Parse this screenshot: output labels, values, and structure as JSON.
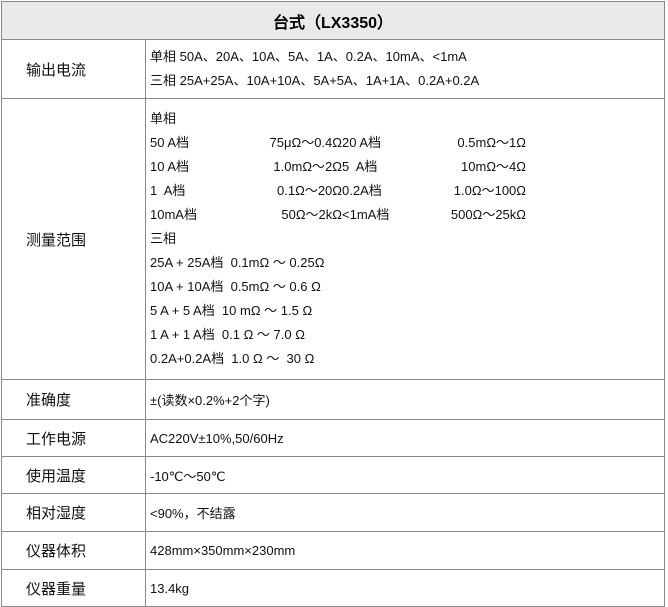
{
  "title": "台式（LX3350）",
  "rows": {
    "range": {
      "label": "输出电流",
      "lines": [
        "单相 50A、20A、10A、5A、1A、0.2A、10mA、<1mA",
        "三相 25A+25A、10A+10A、5A+5A、1A+1A、0.2A+0.2A"
      ]
    },
    "measure": {
      "label": "测量范围",
      "single_title": "单相",
      "single": [
        [
          "50 A档",
          "75μΩ～0.4Ω",
          "20 A档",
          "0.5mΩ～1Ω"
        ],
        [
          "10 A档",
          "1.0mΩ～2Ω",
          "5  A档",
          "10mΩ～4Ω"
        ],
        [
          "1  A档",
          "0.1Ω～20Ω",
          "0.2A档",
          "1.0Ω～100Ω"
        ],
        [
          "10mA档",
          "50Ω～2kΩ",
          "<1mA档",
          "500Ω～25kΩ"
        ]
      ],
      "three_title": "三相",
      "three": [
        "25A + 25A档  0.1mΩ ～ 0.25Ω",
        "10A + 10A档  0.5mΩ ～ 0.6 Ω",
        "5 A + 5 A档  10 mΩ ～ 1.5 Ω",
        "1 A + 1 A档  0.1 Ω ～ 7.0 Ω",
        "0.2A+0.2A档  1.0 Ω ～  30 Ω"
      ]
    },
    "accuracy": {
      "label": "准确度",
      "value": "±(读数×0.2%+2个字)"
    },
    "power": {
      "label": "工作电源",
      "value": "AC220V±10%,50/60Hz"
    },
    "temp": {
      "label": "使用温度",
      "value": "-10℃～50℃"
    },
    "humidity": {
      "label": "相对湿度",
      "value": "<90%，不结露"
    },
    "size": {
      "label": "仪器体积",
      "value": "428mm×350mm×230mm"
    },
    "weight": {
      "label": "仪器重量",
      "value": "13.4kg"
    }
  }
}
